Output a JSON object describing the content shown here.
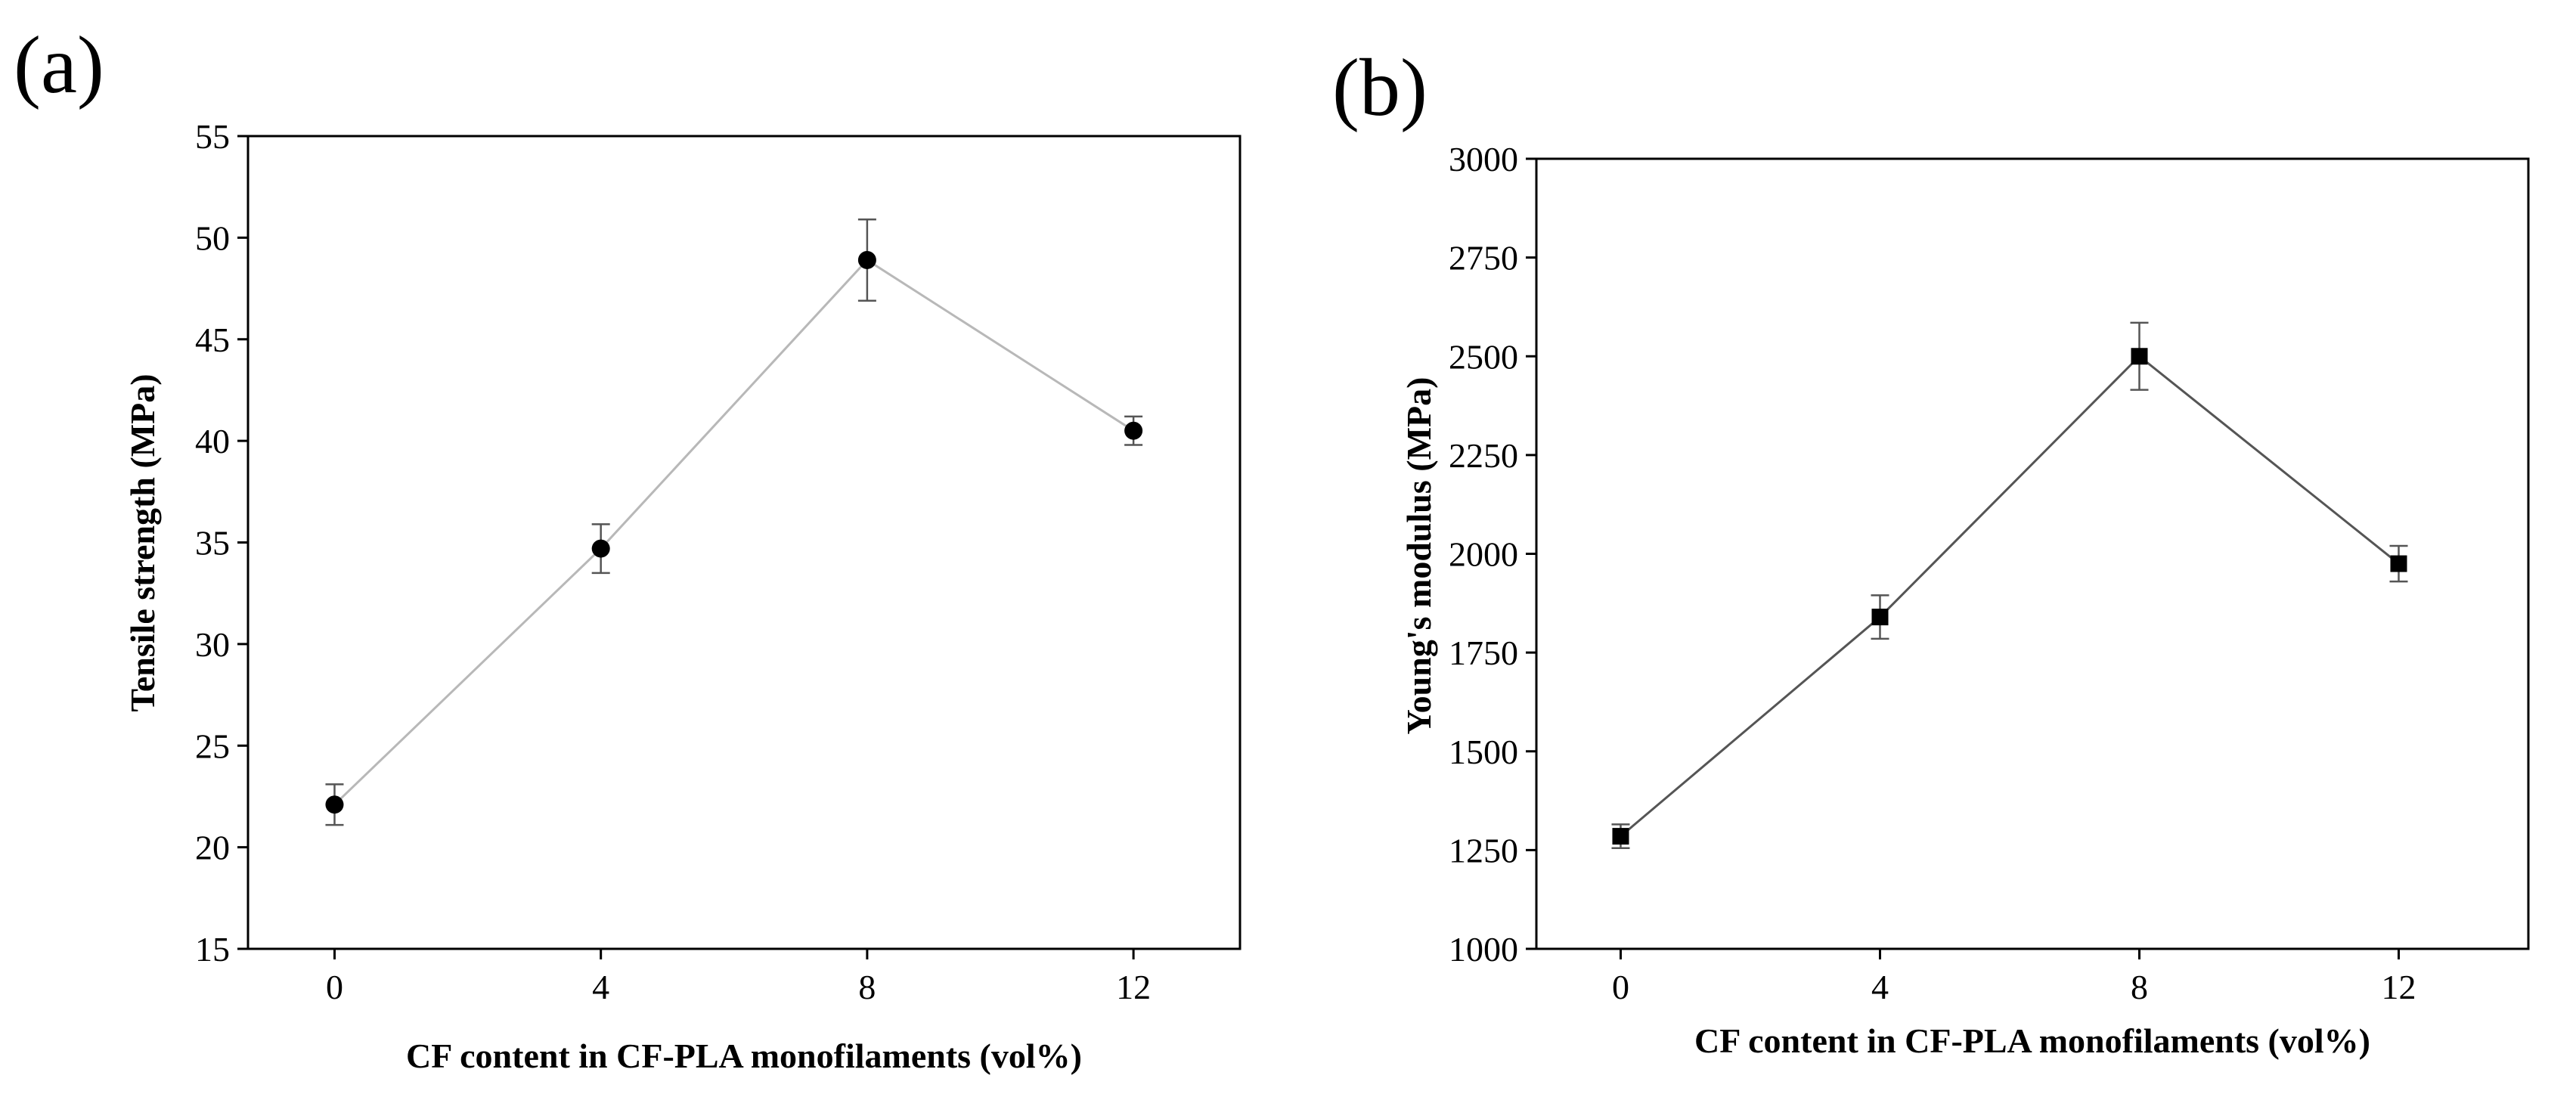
{
  "chart_data": [
    {
      "panel": "(a)",
      "type": "line",
      "xlabel": "CF content in CF-PLA monofilaments (vol%)",
      "ylabel": "Tensile strength (MPa)",
      "x": [
        0,
        4,
        8,
        12
      ],
      "x_ticks": [
        "0",
        "4",
        "8",
        "12"
      ],
      "xlim": [
        -1.3,
        13.6
      ],
      "ylim": [
        15,
        55
      ],
      "y_ticks": [
        "15",
        "20",
        "25",
        "30",
        "35",
        "40",
        "45",
        "50",
        "55"
      ],
      "series": [
        {
          "values": [
            22.1,
            34.7,
            48.9,
            40.5
          ],
          "errors": [
            1.0,
            1.2,
            2.0,
            0.7
          ]
        }
      ],
      "marker": "circle",
      "line_color": "#b8b8b8",
      "marker_color": "#000000",
      "grid": false,
      "legend": "none"
    },
    {
      "panel": "(b)",
      "type": "line",
      "xlabel": "CF content in CF-PLA monofilaments (vol%)",
      "ylabel": "Young's modulus (MPa)",
      "x": [
        0,
        4,
        8,
        12
      ],
      "x_ticks": [
        "0",
        "4",
        "8",
        "12"
      ],
      "xlim": [
        -1.3,
        14.0
      ],
      "ylim": [
        1000,
        3000
      ],
      "y_ticks": [
        "1000",
        "1250",
        "1500",
        "1750",
        "2000",
        "2250",
        "2500",
        "2750",
        "3000"
      ],
      "series": [
        {
          "values": [
            1285,
            1840,
            2500,
            1975
          ],
          "errors": [
            30,
            55,
            85,
            45
          ]
        }
      ],
      "marker": "square",
      "line_color": "#555555",
      "marker_color": "#000000",
      "grid": false,
      "legend": "none"
    }
  ]
}
